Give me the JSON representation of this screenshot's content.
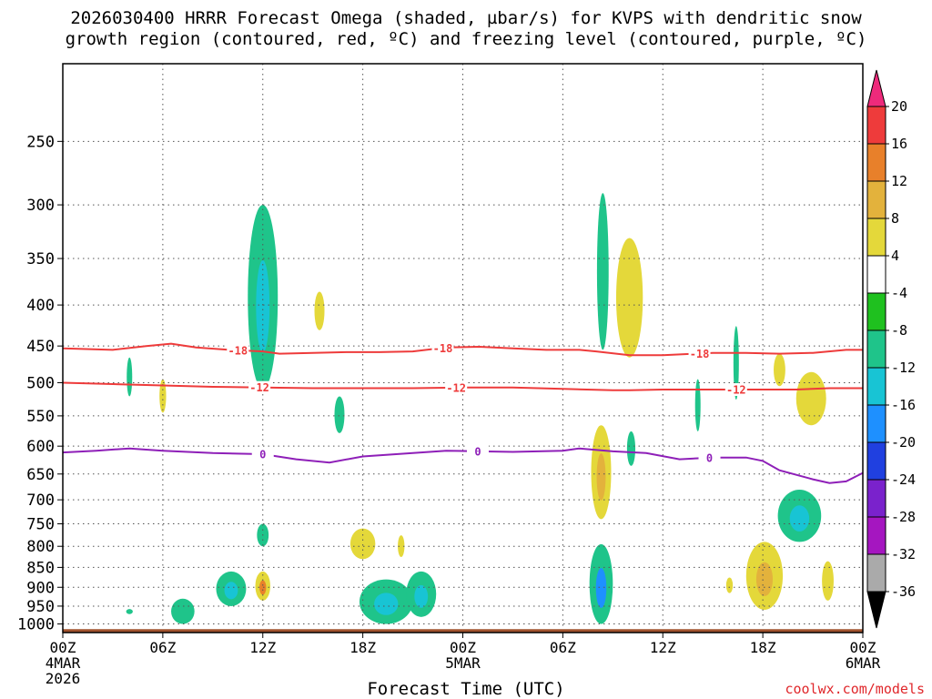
{
  "chart_data": {
    "type": "heatmap",
    "title": {
      "line1": "2026030400 HRRR Forecast Omega (shaded, µbar/s) for KVPS with dendritic snow",
      "line2": "growth region (contoured, red, ºC) and freezing level (contoured, purple, ºC)"
    },
    "xlabel": "Forecast Time (UTC)",
    "credit": "coolwx.com/models",
    "x_range_hours": [
      0,
      48
    ],
    "y_range_hpa": [
      1025,
      200
    ],
    "y_scale": "log-pressure",
    "x_ticks": [
      {
        "h": 0,
        "label": "00Z",
        "sub": "4MAR",
        "sub2": "2026"
      },
      {
        "h": 6,
        "label": "06Z"
      },
      {
        "h": 12,
        "label": "12Z"
      },
      {
        "h": 18,
        "label": "18Z"
      },
      {
        "h": 24,
        "label": "00Z",
        "sub": "5MAR"
      },
      {
        "h": 30,
        "label": "06Z"
      },
      {
        "h": 36,
        "label": "12Z"
      },
      {
        "h": 42,
        "label": "18Z"
      },
      {
        "h": 48,
        "label": "00Z",
        "sub": "6MAR"
      }
    ],
    "y_ticks": [
      250,
      300,
      350,
      400,
      450,
      500,
      550,
      600,
      650,
      700,
      750,
      800,
      850,
      900,
      950,
      1000
    ],
    "grid": true,
    "colorbar": {
      "levels": [
        20,
        16,
        12,
        8,
        4,
        -4,
        -8,
        -12,
        -16,
        -20,
        -24,
        -28,
        -32,
        -36
      ],
      "colors": [
        "#ee2a7b",
        "#ee3b3b",
        "#e8802a",
        "#e3b23c",
        "#e4d83a",
        "#ffffff",
        "#1fc11f",
        "#1fc48a",
        "#18c4d4",
        "#1e90ff",
        "#2040e0",
        "#7a22cc",
        "#a516c0",
        "#aaaaaa",
        "#000000"
      ]
    },
    "contours": [
      {
        "name": "-18",
        "color": "#ee3b3b",
        "label": "-18",
        "points": [
          [
            0,
            453
          ],
          [
            3,
            455
          ],
          [
            5,
            450
          ],
          [
            6.5,
            447
          ],
          [
            8,
            452
          ],
          [
            10,
            455
          ],
          [
            12,
            457
          ],
          [
            13,
            460
          ],
          [
            15,
            459
          ],
          [
            17,
            458
          ],
          [
            19,
            458
          ],
          [
            21,
            457
          ],
          [
            23,
            452
          ],
          [
            25,
            451
          ],
          [
            27,
            453
          ],
          [
            29,
            455
          ],
          [
            31,
            455
          ],
          [
            32,
            457
          ],
          [
            34,
            462
          ],
          [
            36,
            462
          ],
          [
            38,
            460
          ],
          [
            39,
            459
          ],
          [
            41,
            459
          ],
          [
            43,
            460
          ],
          [
            45,
            459
          ],
          [
            47,
            455
          ],
          [
            48,
            455
          ]
        ],
        "label_h": [
          10.5,
          22.8,
          38.2
        ]
      },
      {
        "name": "-12",
        "color": "#ee3b3b",
        "label": "-12",
        "points": [
          [
            0,
            500
          ],
          [
            3,
            502
          ],
          [
            6,
            504
          ],
          [
            9,
            506
          ],
          [
            12,
            507
          ],
          [
            15,
            508
          ],
          [
            18,
            508
          ],
          [
            21,
            508
          ],
          [
            24,
            507
          ],
          [
            27,
            507
          ],
          [
            30,
            509
          ],
          [
            33,
            511
          ],
          [
            34,
            511
          ],
          [
            36,
            510
          ],
          [
            39,
            510
          ],
          [
            41,
            510
          ],
          [
            44,
            510
          ],
          [
            46,
            508
          ],
          [
            48,
            508
          ]
        ],
        "label_h": [
          11.8,
          23.6,
          40.4
        ]
      },
      {
        "name": "0",
        "color": "#8e1fb8",
        "label": "0",
        "points": [
          [
            0,
            611
          ],
          [
            2,
            608
          ],
          [
            4,
            604
          ],
          [
            6,
            608
          ],
          [
            9,
            612
          ],
          [
            12,
            614
          ],
          [
            14,
            623
          ],
          [
            16,
            629
          ],
          [
            18,
            618
          ],
          [
            21,
            612
          ],
          [
            23,
            608
          ],
          [
            25,
            609
          ],
          [
            27,
            610
          ],
          [
            30,
            608
          ],
          [
            31,
            604
          ],
          [
            33,
            609
          ],
          [
            35,
            612
          ],
          [
            37,
            623
          ],
          [
            39,
            620
          ],
          [
            41,
            620
          ],
          [
            42,
            626
          ],
          [
            43,
            643
          ],
          [
            45,
            660
          ],
          [
            46,
            667
          ],
          [
            47,
            664
          ],
          [
            48,
            648
          ]
        ],
        "label_h": [
          12,
          24.9,
          38.8
        ]
      }
    ],
    "shaded_features": [
      {
        "h": 12,
        "p_top": 300,
        "p_bot": 510,
        "w": 0.9,
        "value": -8,
        "core": -12
      },
      {
        "h": 4,
        "p_top": 465,
        "p_bot": 520,
        "w": 0.15,
        "value": -8
      },
      {
        "h": 15.4,
        "p_top": 385,
        "p_bot": 430,
        "w": 0.3,
        "value": 4
      },
      {
        "h": 6,
        "p_top": 495,
        "p_bot": 545,
        "w": 0.2,
        "value": 4
      },
      {
        "h": 16.6,
        "p_top": 520,
        "p_bot": 578,
        "w": 0.3,
        "value": -8
      },
      {
        "h": 12,
        "p_top": 750,
        "p_bot": 800,
        "w": 0.35,
        "value": -8
      },
      {
        "h": 12,
        "p_top": 860,
        "p_bot": 935,
        "w": 0.45,
        "value": 4,
        "core": 12
      },
      {
        "h": 10.1,
        "p_top": 860,
        "p_bot": 950,
        "w": 0.9,
        "value": -8,
        "core": -12
      },
      {
        "h": 7.2,
        "p_top": 930,
        "p_bot": 1000,
        "w": 0.7,
        "value": -8
      },
      {
        "h": 4,
        "p_top": 958,
        "p_bot": 972,
        "w": 0.2,
        "value": -8
      },
      {
        "h": 18,
        "p_top": 760,
        "p_bot": 830,
        "w": 0.75,
        "value": 4
      },
      {
        "h": 19.4,
        "p_top": 880,
        "p_bot": 1000,
        "w": 1.6,
        "value": -8,
        "core": -12
      },
      {
        "h": 21.5,
        "p_top": 860,
        "p_bot": 980,
        "w": 0.9,
        "value": -8,
        "core": -12
      },
      {
        "h": 20.3,
        "p_top": 775,
        "p_bot": 825,
        "w": 0.2,
        "value": 4
      },
      {
        "h": 32.4,
        "p_top": 290,
        "p_bot": 455,
        "w": 0.35,
        "value": -8
      },
      {
        "h": 34,
        "p_top": 330,
        "p_bot": 465,
        "w": 0.8,
        "value": 4
      },
      {
        "h": 34.1,
        "p_top": 575,
        "p_bot": 635,
        "w": 0.25,
        "value": -8
      },
      {
        "h": 32.3,
        "p_top": 565,
        "p_bot": 740,
        "w": 0.6,
        "value": 4,
        "core": 8
      },
      {
        "h": 32.3,
        "p_top": 795,
        "p_bot": 1000,
        "w": 0.7,
        "value": -8,
        "core": -16
      },
      {
        "h": 40.4,
        "p_top": 425,
        "p_bot": 525,
        "w": 0.1,
        "value": -8
      },
      {
        "h": 38.1,
        "p_top": 495,
        "p_bot": 575,
        "w": 0.12,
        "value": -8
      },
      {
        "h": 43,
        "p_top": 460,
        "p_bot": 505,
        "w": 0.35,
        "value": 4
      },
      {
        "h": 44.9,
        "p_top": 485,
        "p_bot": 565,
        "w": 0.9,
        "value": 4
      },
      {
        "h": 44.2,
        "p_top": 680,
        "p_bot": 790,
        "w": 1.3,
        "value": -8,
        "core": -12
      },
      {
        "h": 42.1,
        "p_top": 790,
        "p_bot": 960,
        "w": 1.1,
        "value": 4,
        "core": 8
      },
      {
        "h": 40.0,
        "p_top": 875,
        "p_bot": 915,
        "w": 0.2,
        "value": 4
      },
      {
        "h": 45.9,
        "p_top": 835,
        "p_bot": 935,
        "w": 0.35,
        "value": 4
      }
    ],
    "terrain": {
      "color": "#a0522d",
      "p_surface": 1015
    }
  }
}
